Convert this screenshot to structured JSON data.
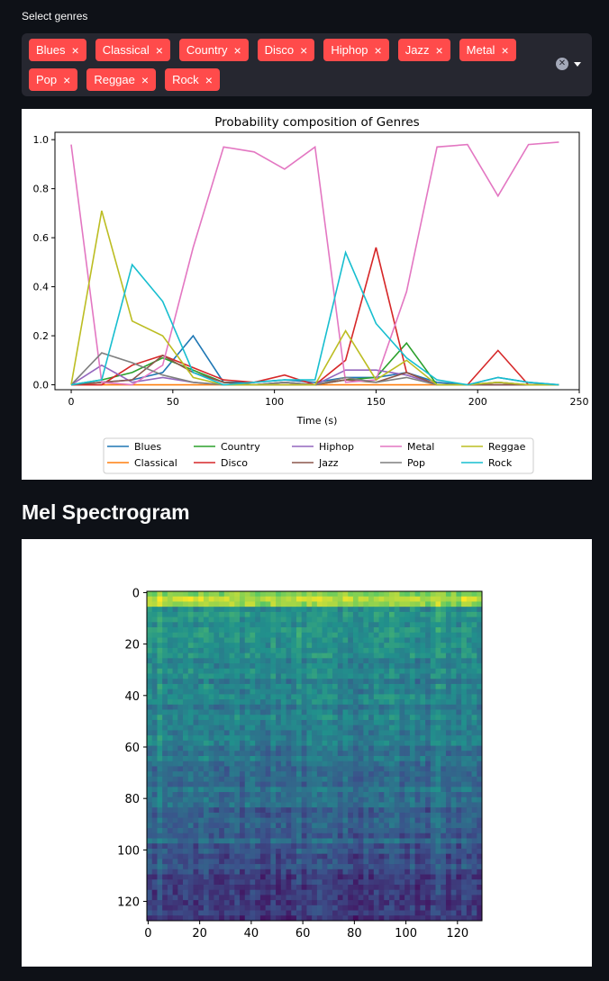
{
  "genre_select": {
    "label": "Select genres",
    "selected": [
      "Blues",
      "Classical",
      "Country",
      "Disco",
      "Hiphop",
      "Jazz",
      "Metal",
      "Pop",
      "Reggae",
      "Rock"
    ],
    "remove_glyph": "×"
  },
  "heading": "Mel Spectrogram",
  "chart_data": [
    {
      "type": "line",
      "title": "Probability composition of Genres",
      "xlabel": "Time (s)",
      "ylabel": "",
      "xlim": [
        -8,
        250
      ],
      "ylim": [
        -0.02,
        1.03
      ],
      "xticks": [
        0,
        50,
        100,
        150,
        200,
        250
      ],
      "yticks": [
        0.0,
        0.2,
        0.4,
        0.6,
        0.8,
        1.0
      ],
      "grid": false,
      "legend": "bottom-center, 5 columns",
      "x": [
        0,
        15,
        30,
        45,
        60,
        75,
        90,
        105,
        120,
        135,
        150,
        165,
        180,
        195,
        210,
        225,
        240
      ],
      "series": [
        {
          "name": "Blues",
          "color": "#1f77b4",
          "values": [
            0.0,
            0.01,
            0.02,
            0.05,
            0.2,
            0.01,
            0.01,
            0.02,
            0.01,
            0.03,
            0.03,
            0.05,
            0.01,
            0.0,
            0.03,
            0.01,
            0.0
          ]
        },
        {
          "name": "Classical",
          "color": "#ff7f0e",
          "values": [
            0.0,
            0.0,
            0.0,
            0.0,
            0.0,
            0.0,
            0.0,
            0.0,
            0.0,
            0.0,
            0.0,
            0.0,
            0.0,
            0.0,
            0.0,
            0.0,
            0.0
          ]
        },
        {
          "name": "Country",
          "color": "#2ca02c",
          "values": [
            0.0,
            0.02,
            0.05,
            0.11,
            0.06,
            0.01,
            0.0,
            0.01,
            0.0,
            0.02,
            0.03,
            0.17,
            0.0,
            0.0,
            0.01,
            0.0,
            0.0
          ]
        },
        {
          "name": "Disco",
          "color": "#d62728",
          "values": [
            0.0,
            0.0,
            0.08,
            0.12,
            0.07,
            0.02,
            0.01,
            0.04,
            0.0,
            0.1,
            0.56,
            0.05,
            0.0,
            0.0,
            0.14,
            0.0,
            0.0
          ]
        },
        {
          "name": "Hiphop",
          "color": "#9467bd",
          "values": [
            0.0,
            0.08,
            0.01,
            0.03,
            0.01,
            0.0,
            0.0,
            0.01,
            0.0,
            0.06,
            0.06,
            0.04,
            0.0,
            0.0,
            0.0,
            0.0,
            0.0
          ]
        },
        {
          "name": "Jazz",
          "color": "#8c564b",
          "values": [
            0.0,
            0.01,
            0.02,
            0.12,
            0.05,
            0.01,
            0.0,
            0.0,
            0.0,
            0.02,
            0.01,
            0.05,
            0.0,
            0.0,
            0.0,
            0.0,
            0.0
          ]
        },
        {
          "name": "Metal",
          "color": "#e377c2",
          "values": [
            0.98,
            0.01,
            0.0,
            0.08,
            0.56,
            0.97,
            0.95,
            0.88,
            0.97,
            0.01,
            0.02,
            0.38,
            0.97,
            0.98,
            0.77,
            0.98,
            0.99
          ]
        },
        {
          "name": "Pop",
          "color": "#7f7f7f",
          "values": [
            0.0,
            0.13,
            0.09,
            0.04,
            0.01,
            0.0,
            0.0,
            0.01,
            0.0,
            0.03,
            0.01,
            0.03,
            0.0,
            0.0,
            0.01,
            0.0,
            0.0
          ]
        },
        {
          "name": "Reggae",
          "color": "#bcbd22",
          "values": [
            0.0,
            0.71,
            0.26,
            0.2,
            0.03,
            0.0,
            0.0,
            0.0,
            0.0,
            0.22,
            0.02,
            0.1,
            0.0,
            0.0,
            0.01,
            0.0,
            0.0
          ]
        },
        {
          "name": "Rock",
          "color": "#17becf",
          "values": [
            0.0,
            0.02,
            0.49,
            0.34,
            0.05,
            0.0,
            0.01,
            0.02,
            0.02,
            0.54,
            0.25,
            0.11,
            0.02,
            0.0,
            0.03,
            0.01,
            0.0
          ]
        }
      ]
    },
    {
      "type": "heatmap",
      "title": "",
      "xlabel": "",
      "ylabel": "",
      "xticks": [
        0,
        20,
        40,
        60,
        80,
        100,
        120
      ],
      "yticks": [
        0,
        20,
        40,
        60,
        80,
        100,
        120
      ],
      "xlim": [
        -0.5,
        129.5
      ],
      "ylim": [
        127.5,
        -0.5
      ],
      "colormap": "viridis",
      "notes": "mel spectrogram image, bright yellow band near row 0-5, darker at high rows"
    }
  ]
}
